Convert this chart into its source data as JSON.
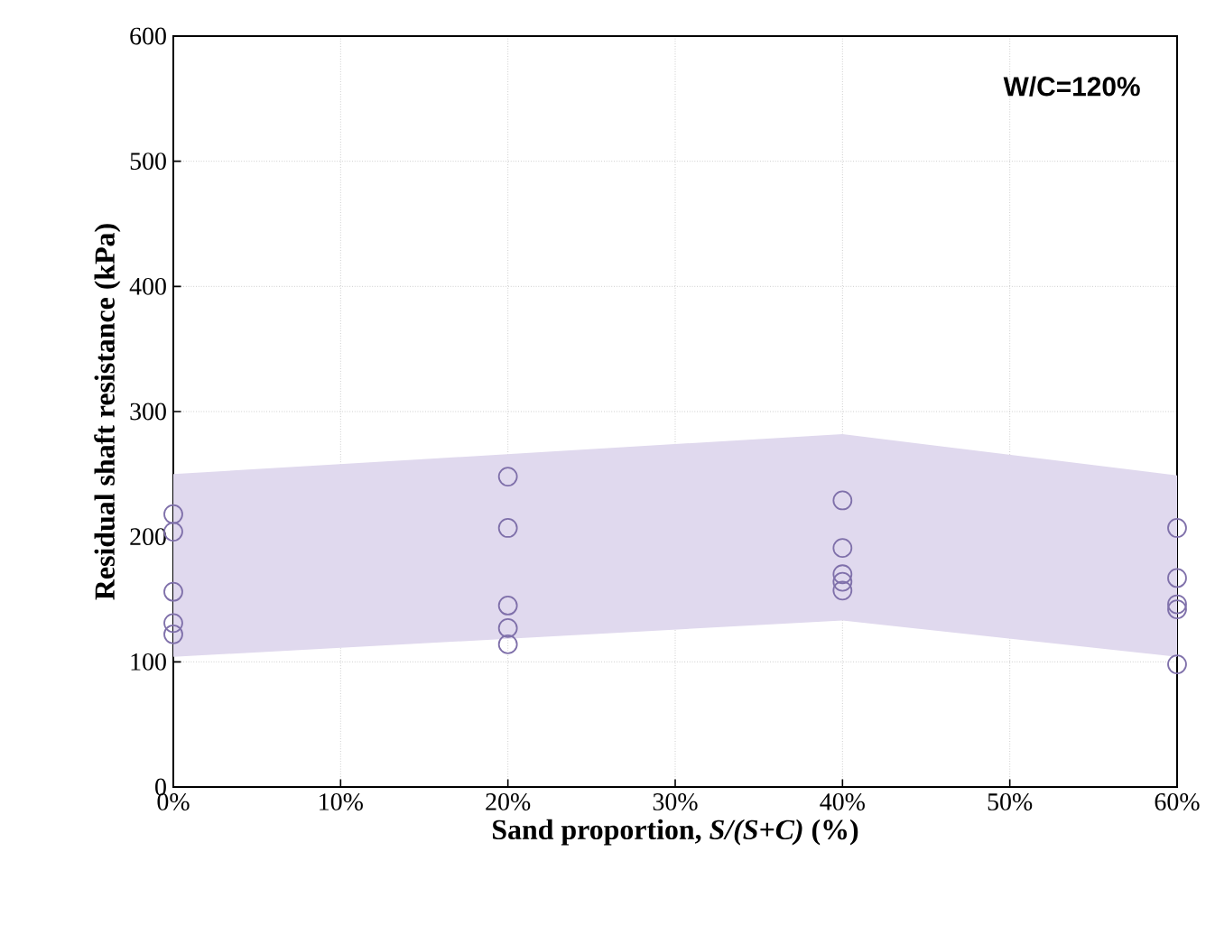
{
  "chart_data": {
    "type": "scatter",
    "xlabel": "Sand proportion, *S/(S+C)* (%)",
    "ylabel": "Residual shaft resistance  (kPa)",
    "annotations": [
      "W/C=120%"
    ],
    "xlim": [
      0,
      60
    ],
    "ylim": [
      0,
      600
    ],
    "xticks": [
      {
        "value": 0,
        "label": "0%"
      },
      {
        "value": 10,
        "label": "10%"
      },
      {
        "value": 20,
        "label": "20%"
      },
      {
        "value": 30,
        "label": "30%"
      },
      {
        "value": 40,
        "label": "40%"
      },
      {
        "value": 50,
        "label": "50%"
      },
      {
        "value": 60,
        "label": "60%"
      }
    ],
    "yticks": [
      0,
      100,
      200,
      300,
      400,
      500,
      600
    ],
    "grid": true,
    "series": [
      {
        "type": "line",
        "color": "#e0d9ee",
        "x": [
          0,
          40,
          60
        ],
        "values": [
          null,
          null,
          null
        ],
        "lower": [
          104,
          133,
          104
        ],
        "upper": [
          250,
          282,
          249
        ]
      },
      {
        "marker": "circle",
        "color": "#7f70aa",
        "x": [
          0,
          0,
          0,
          0,
          0,
          20,
          20,
          20,
          20,
          20,
          40,
          40,
          40,
          40,
          40,
          60,
          60,
          60,
          60,
          60
        ],
        "values": [
          218,
          204,
          156,
          131,
          122,
          248,
          207,
          145,
          127,
          114,
          229,
          191,
          170,
          164,
          157,
          207,
          167,
          146,
          142,
          98
        ]
      }
    ]
  }
}
